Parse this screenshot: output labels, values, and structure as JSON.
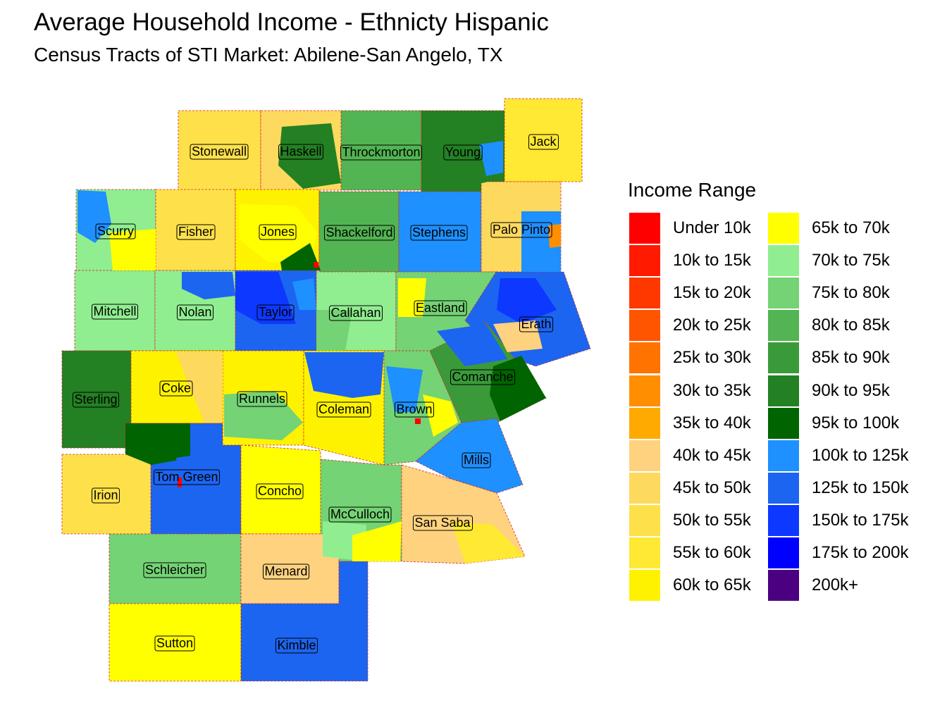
{
  "title": "Average Household Income - Ethnicty Hispanic",
  "subtitle": "Census Tracts of STI Market: Abilene-San Angelo, TX",
  "legend": {
    "title": "Income Range",
    "items": [
      {
        "label": "Under 10k",
        "color": "#FF0000"
      },
      {
        "label": "10k to 15k",
        "color": "#FF1A00"
      },
      {
        "label": "15k to 20k",
        "color": "#FF3800"
      },
      {
        "label": "20k to 25k",
        "color": "#FF5500"
      },
      {
        "label": "25k to 30k",
        "color": "#FF7300"
      },
      {
        "label": "30k to 35k",
        "color": "#FF8E00"
      },
      {
        "label": "35k to 40k",
        "color": "#FFAA00"
      },
      {
        "label": "40k to 45k",
        "color": "#FFD27F"
      },
      {
        "label": "45k to 50k",
        "color": "#FDD95E"
      },
      {
        "label": "50k to 55k",
        "color": "#FEE14A"
      },
      {
        "label": "55k to 60k",
        "color": "#FFE932"
      },
      {
        "label": "60k to 65k",
        "color": "#FFF200"
      },
      {
        "label": "65k to 70k",
        "color": "#FFFF00"
      },
      {
        "label": "70k to 75k",
        "color": "#90EE90"
      },
      {
        "label": "75k to 80k",
        "color": "#74D374"
      },
      {
        "label": "80k to 85k",
        "color": "#52B452"
      },
      {
        "label": "85k to 90k",
        "color": "#3A9A3A"
      },
      {
        "label": "90k to 95k",
        "color": "#238023"
      },
      {
        "label": "95k to 100k",
        "color": "#006400"
      },
      {
        "label": "100k to 125k",
        "color": "#1E90FF"
      },
      {
        "label": "125k to 150k",
        "color": "#1C65F0"
      },
      {
        "label": "150k to 175k",
        "color": "#0D38FF"
      },
      {
        "label": "175k to 200k",
        "color": "#0000FF"
      },
      {
        "label": "200k+",
        "color": "#4B0082"
      }
    ]
  },
  "counties": [
    {
      "name": "Stonewall",
      "color": "#FEE14A"
    },
    {
      "name": "Haskell",
      "color": "#FDD95E"
    },
    {
      "name": "Throckmorton",
      "color": "#52B452"
    },
    {
      "name": "Young",
      "color": "#238023"
    },
    {
      "name": "Jack",
      "color": "#FFE932"
    },
    {
      "name": "Scurry",
      "color": "#90EE90"
    },
    {
      "name": "Fisher",
      "color": "#FEE14A"
    },
    {
      "name": "Jones",
      "color": "#FFF200"
    },
    {
      "name": "Shackelford",
      "color": "#52B452"
    },
    {
      "name": "Stephens",
      "color": "#1E90FF"
    },
    {
      "name": "Palo Pinto",
      "color": "#FDD95E"
    },
    {
      "name": "Mitchell",
      "color": "#90EE90"
    },
    {
      "name": "Nolan",
      "color": "#90EE90"
    },
    {
      "name": "Taylor",
      "color": "#1C65F0"
    },
    {
      "name": "Callahan",
      "color": "#90EE90"
    },
    {
      "name": "Eastland",
      "color": "#74D374"
    },
    {
      "name": "Erath",
      "color": "#1C65F0"
    },
    {
      "name": "Sterling",
      "color": "#238023"
    },
    {
      "name": "Coke",
      "color": "#FFF200"
    },
    {
      "name": "Runnels",
      "color": "#FFF200"
    },
    {
      "name": "Coleman",
      "color": "#FFF200"
    },
    {
      "name": "Brown",
      "color": "#74D374"
    },
    {
      "name": "Comanche",
      "color": "#3A9A3A"
    },
    {
      "name": "Irion",
      "color": "#FEE14A"
    },
    {
      "name": "Tom Green",
      "color": "#1C65F0"
    },
    {
      "name": "Concho",
      "color": "#FFFF00"
    },
    {
      "name": "Mills",
      "color": "#1E90FF"
    },
    {
      "name": "McCulloch",
      "color": "#74D374"
    },
    {
      "name": "San Saba",
      "color": "#FFD27F"
    },
    {
      "name": "Schleicher",
      "color": "#74D374"
    },
    {
      "name": "Menard",
      "color": "#FFD27F"
    },
    {
      "name": "Sutton",
      "color": "#FFFF00"
    },
    {
      "name": "Kimble",
      "color": "#1C65F0"
    }
  ]
}
